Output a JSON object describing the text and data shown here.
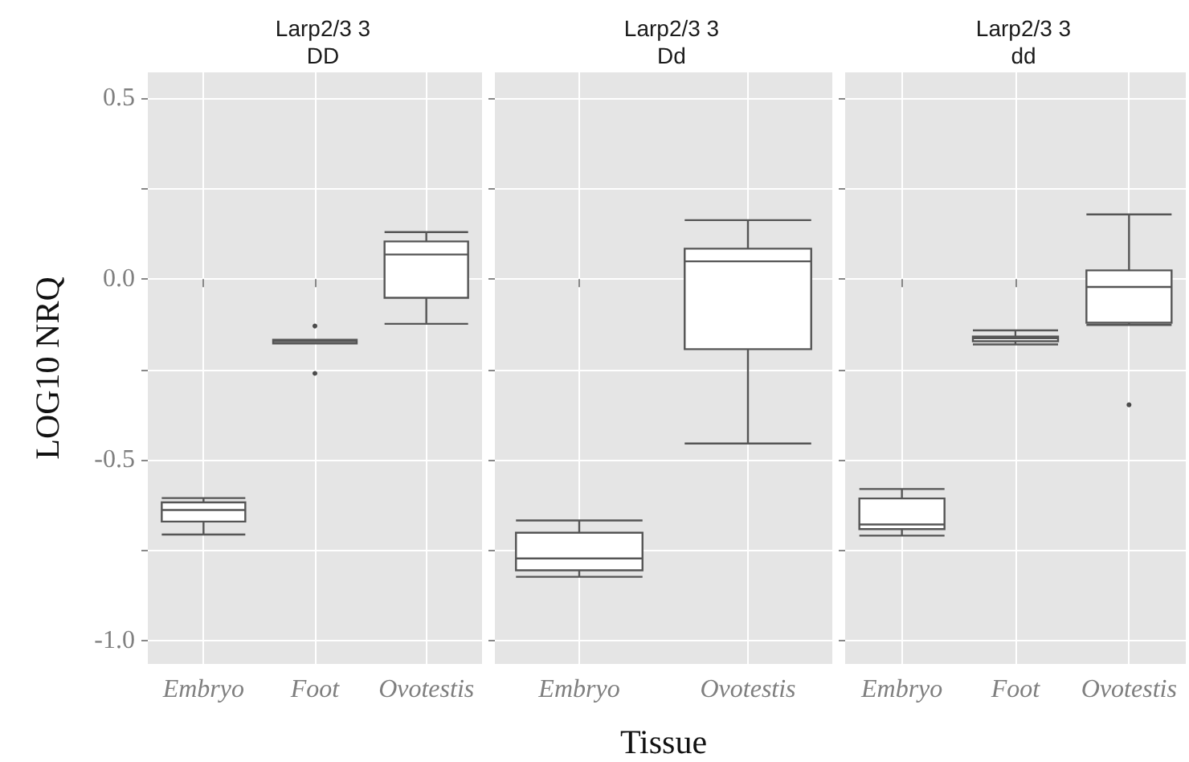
{
  "chart_data": [
    {
      "type": "box",
      "title": "Larp2/3 3\nDD",
      "ylabel": "LOG10 NRQ",
      "categories": [
        "Embryo",
        "Foot",
        "Ovotestis"
      ],
      "ylim": [
        -1.065,
        0.572
      ],
      "yticks": [
        {
          "value": -1,
          "label": "-1.0"
        },
        {
          "value": -0.75,
          "label": null
        },
        {
          "value": -0.5,
          "label": "-0.5"
        },
        {
          "value": -0.25,
          "label": null
        },
        {
          "value": 0,
          "label": "0.0"
        },
        {
          "value": 0.25,
          "label": null
        },
        {
          "value": 0.5,
          "label": "0.5"
        }
      ],
      "grid": true,
      "boxes": [
        {
          "low": -0.707,
          "q1": -0.671,
          "median": -0.639,
          "q3": -0.618,
          "high": -0.606
        },
        {
          "low": -0.178,
          "q1": -0.178,
          "median": -0.172,
          "q3": -0.168,
          "high": -0.168,
          "outliers": [
            -0.13,
            -0.261
          ]
        },
        {
          "low": -0.124,
          "q1": -0.052,
          "median": 0.068,
          "q3": 0.104,
          "high": 0.13
        }
      ]
    },
    {
      "type": "box",
      "title": "Larp2/3 3\nDd",
      "xlabel": "Tissue",
      "categories": [
        "Embryo",
        "Ovotestis"
      ],
      "ylim": [
        -1.065,
        0.572
      ],
      "yticks": [
        -1,
        -0.75,
        -0.5,
        -0.25,
        0,
        0.25,
        0.5
      ],
      "grid": true,
      "tick_labels": "x",
      "boxes": [
        {
          "low": -0.824,
          "q1": -0.806,
          "median": -0.773,
          "q3": -0.702,
          "high": -0.668
        },
        {
          "low": -0.455,
          "q1": -0.194,
          "median": 0.049,
          "q3": 0.084,
          "high": 0.163
        }
      ]
    },
    {
      "type": "box",
      "title": "Larp2/3 3\ndd",
      "categories": [
        "Embryo",
        "Foot",
        "Ovotestis"
      ],
      "ylim": [
        -1.065,
        0.572
      ],
      "yticks": [
        -1,
        -0.75,
        -0.5,
        -0.25,
        0,
        0.25,
        0.5
      ],
      "grid": true,
      "tick_labels": "x",
      "boxes": [
        {
          "low": -0.71,
          "q1": -0.692,
          "median": -0.679,
          "q3": -0.607,
          "high": -0.581
        },
        {
          "low": -0.181,
          "q1": -0.172,
          "median": -0.164,
          "q3": -0.159,
          "high": -0.142
        },
        {
          "low": -0.127,
          "q1": -0.121,
          "median": -0.022,
          "q3": 0.024,
          "high": 0.179,
          "outliers": [
            -0.348
          ]
        }
      ]
    }
  ]
}
